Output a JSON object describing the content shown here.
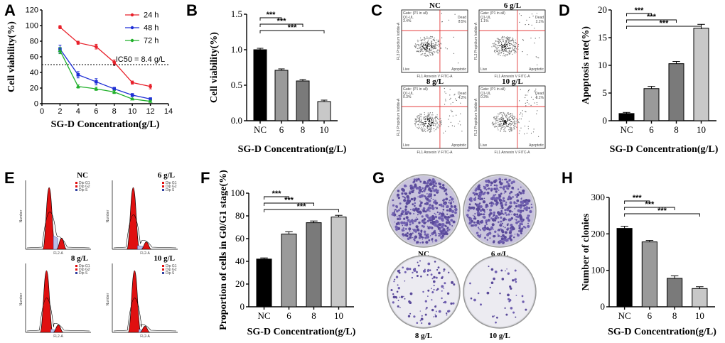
{
  "panels": {
    "A": "A",
    "B": "B",
    "C": "C",
    "D": "D",
    "E": "E",
    "F": "F",
    "G": "G",
    "H": "H"
  },
  "chart_data": [
    {
      "panel": "A",
      "type": "line",
      "xlabel": "SG-D Concentration(g/L)",
      "ylabel": "Cell viability(%)",
      "x": [
        2,
        4,
        6,
        8,
        10,
        12
      ],
      "xticks": [
        0,
        2,
        4,
        6,
        8,
        10,
        12,
        14
      ],
      "yticks": [
        0,
        20,
        40,
        60,
        80,
        100,
        120
      ],
      "xlim": [
        0,
        14
      ],
      "ylim": [
        0,
        120
      ],
      "series": [
        {
          "name": "24 h",
          "color": "#e8202a",
          "values": [
            98,
            78,
            73,
            53,
            27,
            22
          ],
          "err": [
            2,
            2,
            3,
            3,
            2,
            3
          ]
        },
        {
          "name": "48 h",
          "color": "#1f2fd6",
          "values": [
            70,
            37,
            28,
            19,
            11,
            6
          ],
          "err": [
            5,
            4,
            4,
            2,
            2,
            1
          ]
        },
        {
          "name": "72 h",
          "color": "#20b02a",
          "values": [
            68,
            22,
            19,
            15,
            6,
            3
          ],
          "err": [
            4,
            2,
            2,
            2,
            1,
            1
          ]
        }
      ],
      "reference_line": {
        "y": 50,
        "style": "dotted"
      },
      "annotation": "IC50 = 8.4 g/L",
      "legend_position": "top-right"
    },
    {
      "panel": "B",
      "type": "bar",
      "xlabel": "SG-D Concentration(g/L)",
      "ylabel": "Cell viability(%)",
      "categories": [
        "NC",
        "6",
        "8",
        "10"
      ],
      "values": [
        1.0,
        0.71,
        0.56,
        0.27
      ],
      "err": [
        0.02,
        0.02,
        0.02,
        0.02
      ],
      "colors": [
        "#000000",
        "#9a9a9a",
        "#7a7a7a",
        "#c8c8c8"
      ],
      "yticks": [
        "0.0",
        "0.5",
        "1.0",
        "1.5"
      ],
      "ylim": [
        0,
        1.5
      ],
      "significance": [
        "***",
        "***",
        "***"
      ]
    },
    {
      "panel": "D",
      "type": "bar",
      "xlabel": "SG-D Concentration(g/L)",
      "ylabel": "Apoptosis rate(%)",
      "categories": [
        "NC",
        "6",
        "8",
        "10"
      ],
      "values": [
        1.3,
        5.8,
        10.3,
        16.7
      ],
      "err": [
        0.2,
        0.4,
        0.4,
        0.7
      ],
      "colors": [
        "#000000",
        "#9a9a9a",
        "#7a7a7a",
        "#c8c8c8"
      ],
      "yticks": [
        "0",
        "5",
        "10",
        "15",
        "20"
      ],
      "ylim": [
        0,
        20
      ],
      "significance": [
        "***",
        "***",
        "***"
      ]
    },
    {
      "panel": "F",
      "type": "bar",
      "xlabel": "SG-D Concentration(g/L)",
      "ylabel": "Proportion of cells in G0/G1 stage(%)",
      "categories": [
        "NC",
        "6",
        "8",
        "10"
      ],
      "values": [
        42,
        64,
        74,
        79
      ],
      "err": [
        1,
        2,
        1.5,
        1.5
      ],
      "colors": [
        "#000000",
        "#9a9a9a",
        "#7a7a7a",
        "#c8c8c8"
      ],
      "yticks": [
        "0",
        "20",
        "40",
        "60",
        "80",
        "100"
      ],
      "ylim": [
        0,
        100
      ],
      "significance": [
        "***",
        "***",
        "***"
      ]
    },
    {
      "panel": "H",
      "type": "bar",
      "xlabel": "SG-D Concentration(g/L)",
      "ylabel": "Number of clonies",
      "categories": [
        "NC",
        "6",
        "8",
        "10"
      ],
      "values": [
        215,
        178,
        78,
        50
      ],
      "err": [
        6,
        4,
        7,
        5
      ],
      "colors": [
        "#000000",
        "#9a9a9a",
        "#7a7a7a",
        "#c8c8c8"
      ],
      "yticks": [
        "0",
        "100",
        "200",
        "300"
      ],
      "ylim": [
        0,
        300
      ],
      "significance": [
        "***",
        "***",
        "***"
      ]
    }
  ],
  "flow": {
    "labels": [
      "NC",
      "6 g/L",
      "8 g/L",
      "10 g/L"
    ],
    "gate": "Gate: (P1 in all)",
    "q_ul": "Q1-UL",
    "dead": "Dead",
    "live": "Live",
    "apoptotic": "Apoptotic",
    "xaxis": "FL1 Annexin V FITC-A",
    "yaxis": "FL3 Propidium Iodide-A",
    "ul_values": [
      "3.4%",
      "1.1%",
      "0.3%",
      "0.3%"
    ],
    "ur_values": [
      "0.5%",
      "2.1%",
      "4.2%",
      "8.1%"
    ]
  },
  "cycle": {
    "labels": [
      "NC",
      "6 g/L",
      "8 g/L",
      "10 g/L"
    ],
    "legend": [
      "Dip G1",
      "Dip G2",
      "Dip S"
    ],
    "xaxis": "FL2-A",
    "yaxis": "Number"
  },
  "colony": {
    "labels": [
      "NC",
      "6 g/L",
      "8 g/L",
      "10 g/L"
    ],
    "density": [
      0.95,
      0.85,
      0.22,
      0.08
    ]
  }
}
